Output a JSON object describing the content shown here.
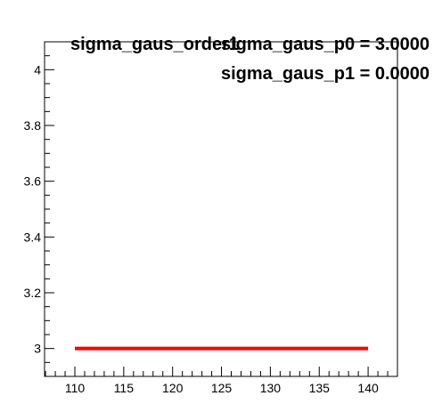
{
  "chart_data": {
    "type": "line",
    "title": "sigma_gaus_order1",
    "stats": [
      "sigma_gaus_p0 = 3.0000",
      "sigma_gaus_p1 = 0.0000"
    ],
    "xlabel": "",
    "ylabel": "",
    "xlim": [
      106.9,
      143
    ],
    "ylim": [
      2.9,
      4.1
    ],
    "x_ticks": [
      110,
      115,
      120,
      125,
      130,
      135,
      140
    ],
    "y_ticks": [
      3,
      3.2,
      3.4,
      3.6,
      3.8,
      4
    ],
    "y_tick_labels": [
      "3",
      "3.2",
      "3.4",
      "3.6",
      "3.8",
      "4"
    ],
    "series": [
      {
        "x": [
          110,
          140
        ],
        "y": [
          3,
          3
        ],
        "color": "#ff0000"
      }
    ],
    "grid": false
  }
}
